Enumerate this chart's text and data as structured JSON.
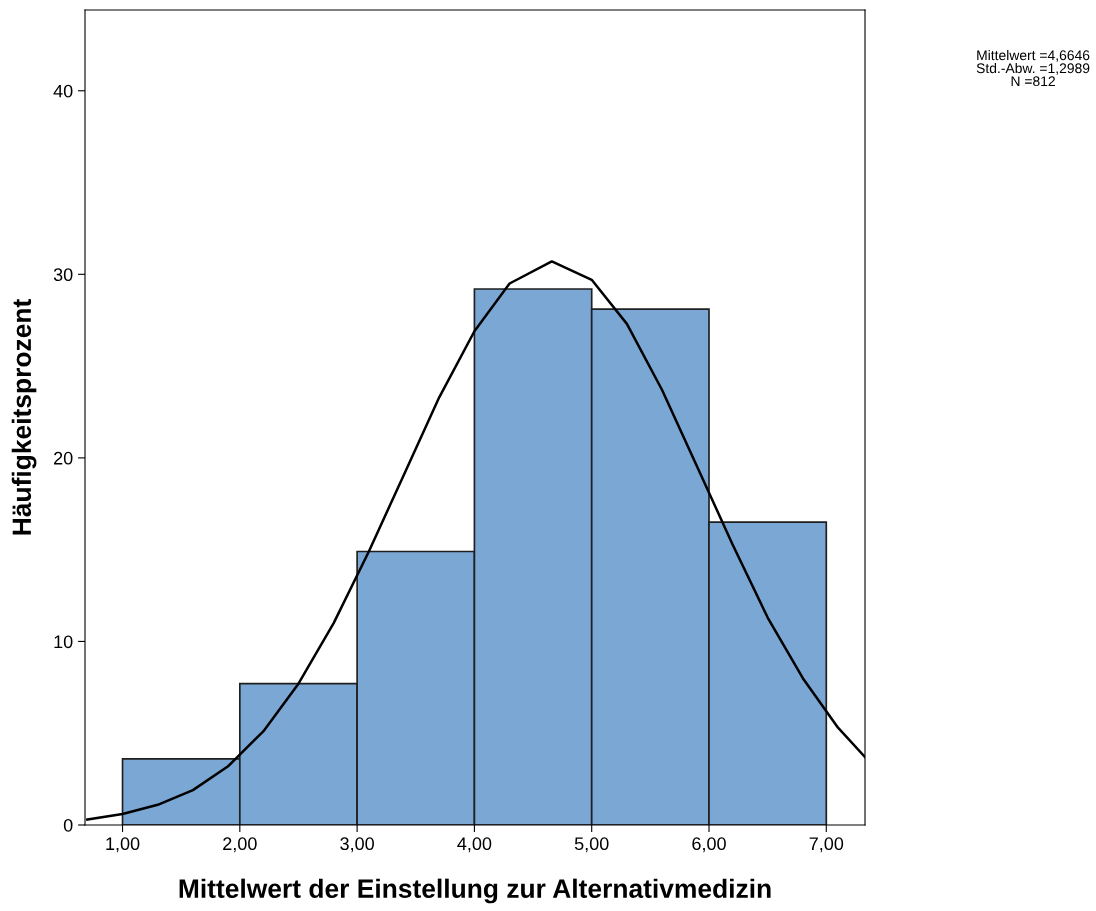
{
  "chart_data": {
    "type": "histogram",
    "xlabel": "Mittelwert der Einstellung zur Alternativmedizin",
    "ylabel": "Häufigkeitsprozent",
    "bins": [
      1,
      2,
      3,
      4,
      5,
      6,
      7
    ],
    "values": [
      3.6,
      7.7,
      14.9,
      29.2,
      28.1,
      16.5
    ],
    "color": "#7ba7d4",
    "series": [
      {
        "type": "line",
        "color": "#000000",
        "x": [
          0.7,
          1.0,
          1.3,
          1.6,
          1.9,
          2.2,
          2.5,
          2.8,
          3.1,
          3.4,
          3.7,
          4.0,
          4.3,
          4.66,
          5.0,
          5.3,
          5.6,
          5.9,
          6.2,
          6.5,
          6.8,
          7.1,
          7.33
        ],
        "values": [
          0.3,
          0.6,
          1.1,
          1.9,
          3.2,
          5.1,
          7.7,
          11.0,
          14.9,
          19.1,
          23.3,
          26.9,
          29.5,
          30.7,
          29.7,
          27.3,
          23.7,
          19.5,
          15.3,
          11.3,
          8.0,
          5.3,
          3.7
        ]
      }
    ],
    "xlim": [
      0.68,
      7.33
    ],
    "ylim": [
      0,
      44.4
    ],
    "xticks": [
      {
        "value": 1,
        "label": "1,00"
      },
      {
        "value": 2,
        "label": "2,00"
      },
      {
        "value": 3,
        "label": "3,00"
      },
      {
        "value": 4,
        "label": "4,00"
      },
      {
        "value": 5,
        "label": "5,00"
      },
      {
        "value": 6,
        "label": "6,00"
      },
      {
        "value": 7,
        "label": "7,00"
      }
    ],
    "yticks": [
      0,
      10,
      20,
      30,
      40
    ],
    "grid": false,
    "legend": false,
    "annotations": [
      "Mittelwert =4,6646",
      "Std.-Abw. =1,2989",
      "N =812"
    ]
  }
}
